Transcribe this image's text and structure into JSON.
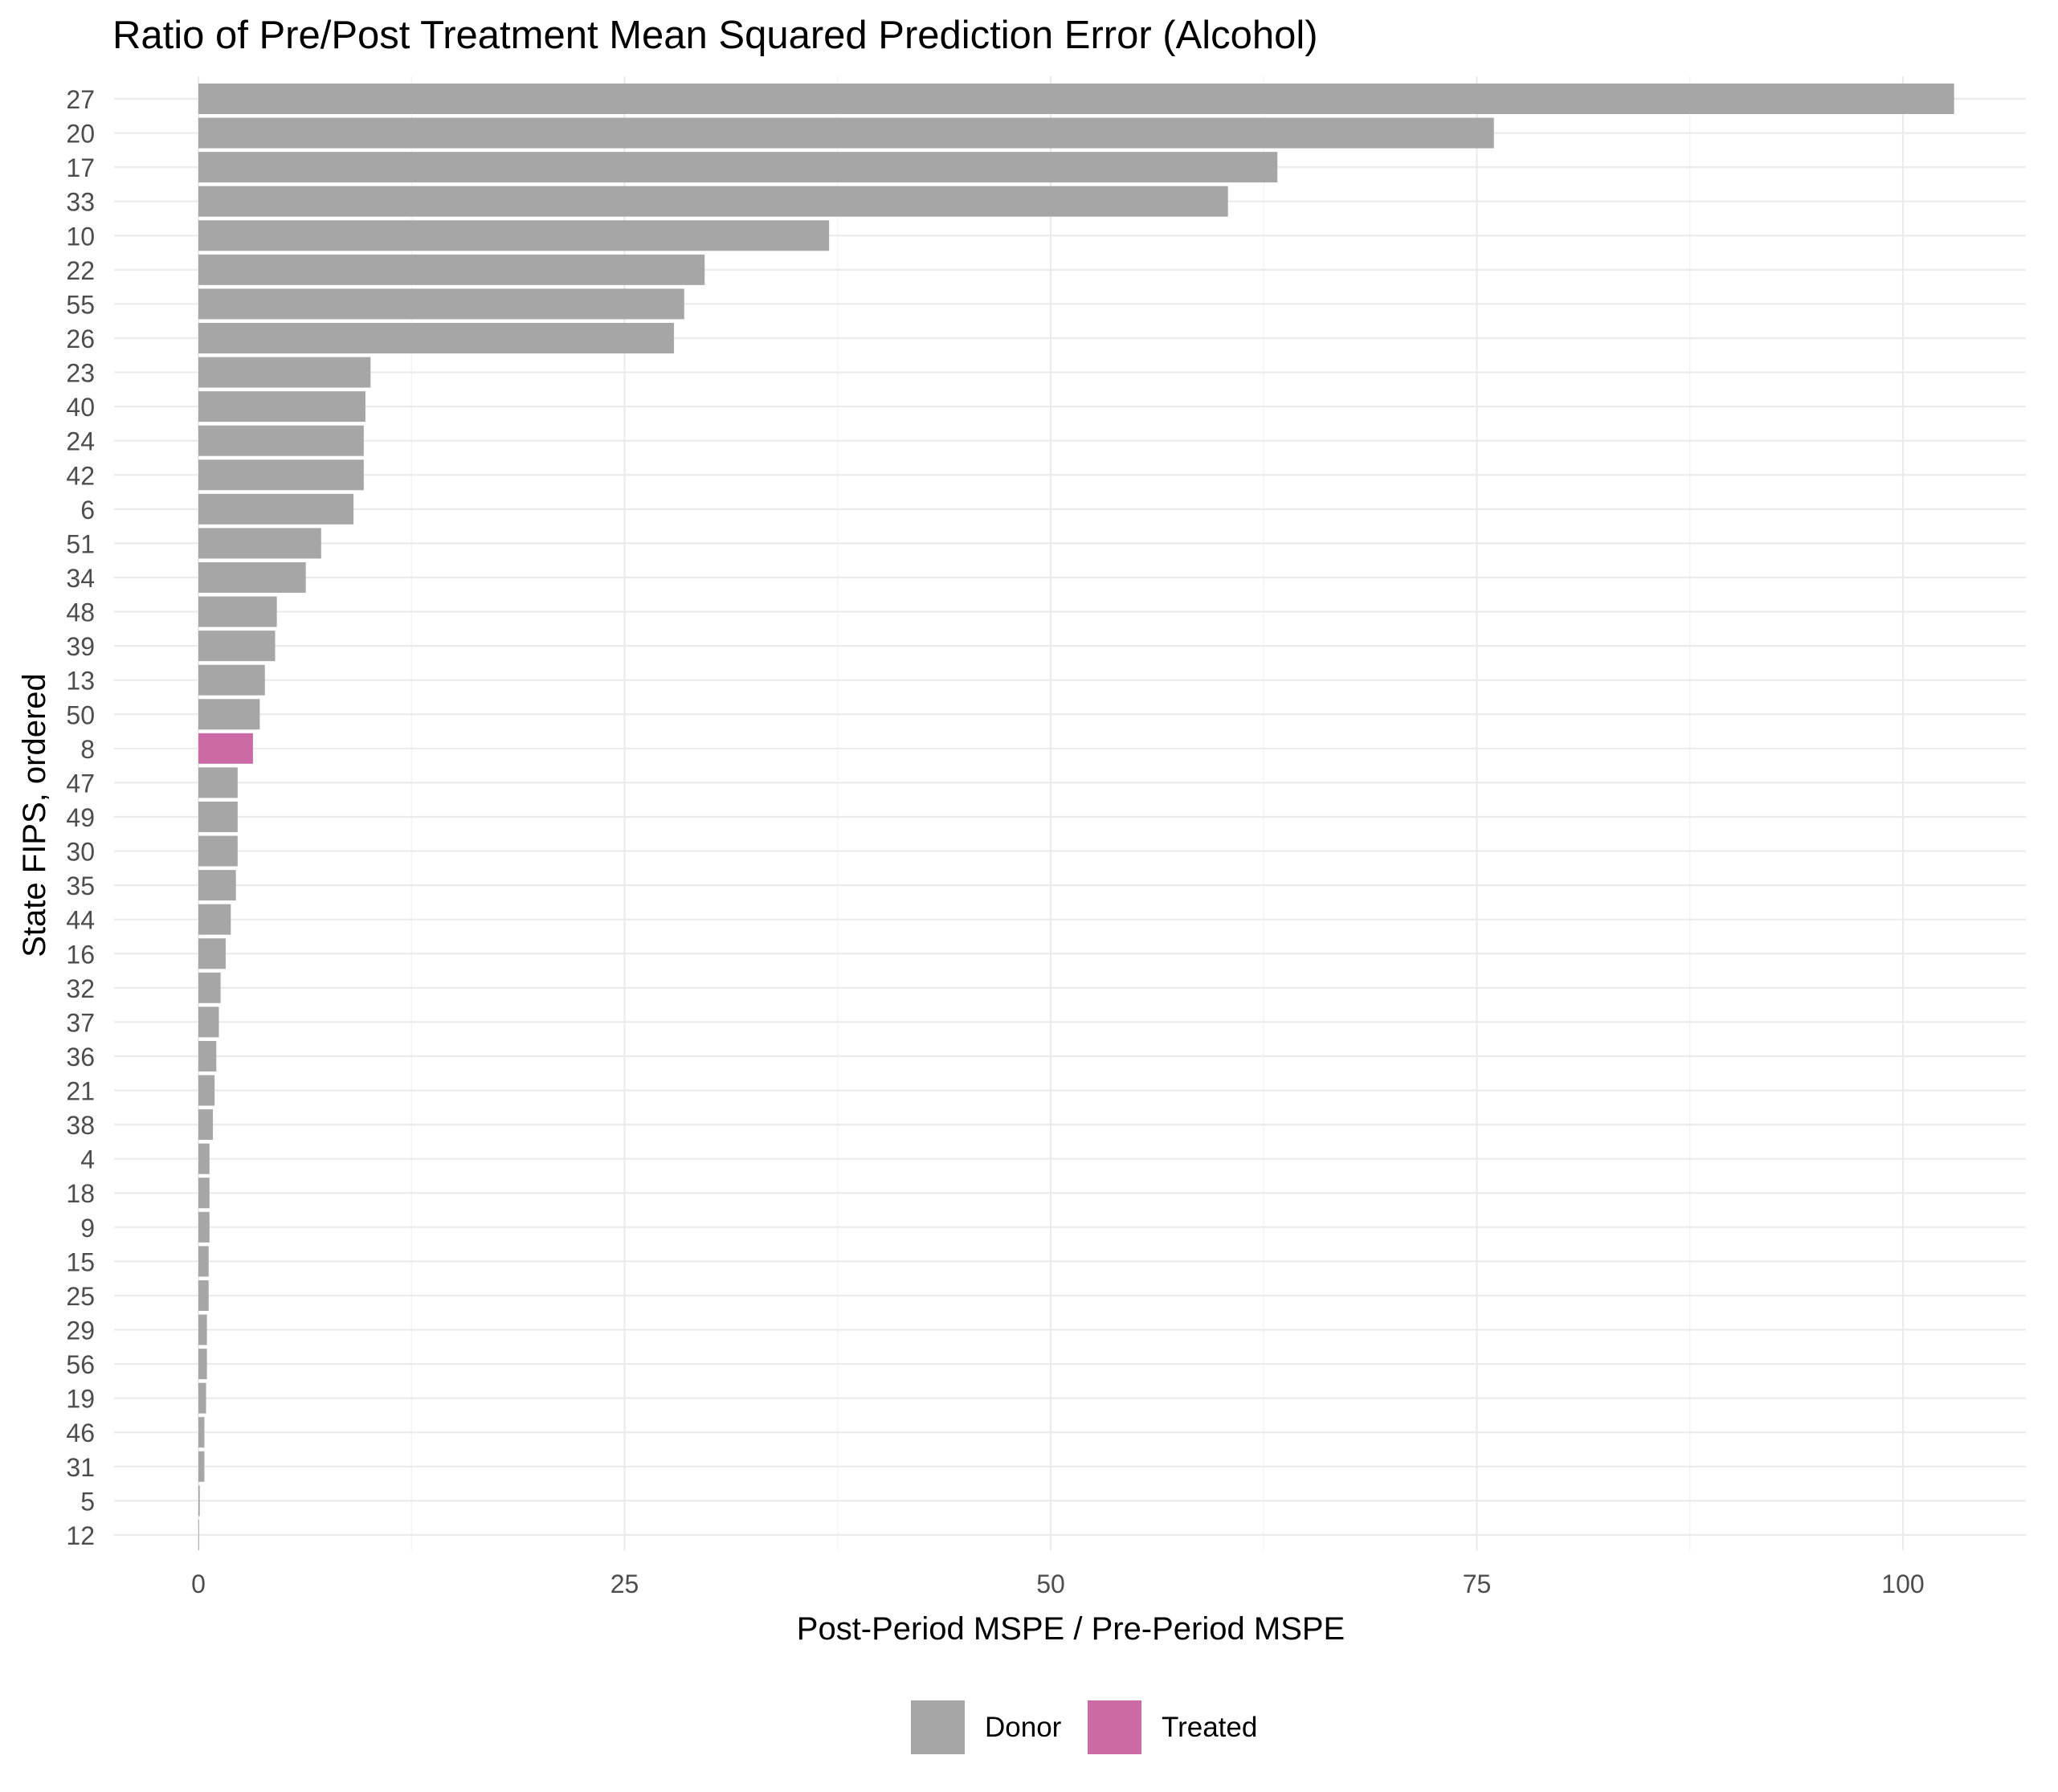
{
  "chart_data": {
    "type": "bar",
    "orientation": "horizontal",
    "title": "Ratio of Pre/Post Treatment Mean Squared Prediction Error (Alcohol)",
    "xlabel": "Post-Period MSPE / Pre-Period MSPE",
    "ylabel": "State FIPS, ordered",
    "xlim": [
      -5,
      108
    ],
    "xticks": [
      0,
      25,
      50,
      75,
      100
    ],
    "grid": true,
    "legend_position": "bottom",
    "legend": [
      {
        "name": "Donor",
        "color": "#a6a6a6"
      },
      {
        "name": "Treated",
        "color": "#cc6aa5"
      }
    ],
    "bars": [
      {
        "state": "27",
        "value": 103.0,
        "group": "Donor"
      },
      {
        "state": "20",
        "value": 76.0,
        "group": "Donor"
      },
      {
        "state": "17",
        "value": 63.3,
        "group": "Donor"
      },
      {
        "state": "33",
        "value": 60.4,
        "group": "Donor"
      },
      {
        "state": "10",
        "value": 37.0,
        "group": "Donor"
      },
      {
        "state": "22",
        "value": 29.7,
        "group": "Donor"
      },
      {
        "state": "55",
        "value": 28.5,
        "group": "Donor"
      },
      {
        "state": "26",
        "value": 27.9,
        "group": "Donor"
      },
      {
        "state": "23",
        "value": 10.1,
        "group": "Donor"
      },
      {
        "state": "40",
        "value": 9.8,
        "group": "Donor"
      },
      {
        "state": "24",
        "value": 9.7,
        "group": "Donor"
      },
      {
        "state": "42",
        "value": 9.7,
        "group": "Donor"
      },
      {
        "state": "6",
        "value": 9.1,
        "group": "Donor"
      },
      {
        "state": "51",
        "value": 7.2,
        "group": "Donor"
      },
      {
        "state": "34",
        "value": 6.3,
        "group": "Donor"
      },
      {
        "state": "48",
        "value": 4.6,
        "group": "Donor"
      },
      {
        "state": "39",
        "value": 4.5,
        "group": "Donor"
      },
      {
        "state": "13",
        "value": 3.9,
        "group": "Donor"
      },
      {
        "state": "50",
        "value": 3.6,
        "group": "Donor"
      },
      {
        "state": "8",
        "value": 3.2,
        "group": "Treated"
      },
      {
        "state": "47",
        "value": 2.3,
        "group": "Donor"
      },
      {
        "state": "49",
        "value": 2.3,
        "group": "Donor"
      },
      {
        "state": "30",
        "value": 2.3,
        "group": "Donor"
      },
      {
        "state": "35",
        "value": 2.2,
        "group": "Donor"
      },
      {
        "state": "44",
        "value": 1.9,
        "group": "Donor"
      },
      {
        "state": "16",
        "value": 1.6,
        "group": "Donor"
      },
      {
        "state": "32",
        "value": 1.3,
        "group": "Donor"
      },
      {
        "state": "37",
        "value": 1.2,
        "group": "Donor"
      },
      {
        "state": "36",
        "value": 1.05,
        "group": "Donor"
      },
      {
        "state": "21",
        "value": 0.95,
        "group": "Donor"
      },
      {
        "state": "38",
        "value": 0.85,
        "group": "Donor"
      },
      {
        "state": "4",
        "value": 0.65,
        "group": "Donor"
      },
      {
        "state": "18",
        "value": 0.65,
        "group": "Donor"
      },
      {
        "state": "9",
        "value": 0.65,
        "group": "Donor"
      },
      {
        "state": "15",
        "value": 0.6,
        "group": "Donor"
      },
      {
        "state": "25",
        "value": 0.6,
        "group": "Donor"
      },
      {
        "state": "29",
        "value": 0.5,
        "group": "Donor"
      },
      {
        "state": "56",
        "value": 0.5,
        "group": "Donor"
      },
      {
        "state": "19",
        "value": 0.45,
        "group": "Donor"
      },
      {
        "state": "46",
        "value": 0.35,
        "group": "Donor"
      },
      {
        "state": "31",
        "value": 0.35,
        "group": "Donor"
      },
      {
        "state": "5",
        "value": 0.08,
        "group": "Donor"
      },
      {
        "state": "12",
        "value": 0.0,
        "group": "Donor"
      }
    ]
  }
}
